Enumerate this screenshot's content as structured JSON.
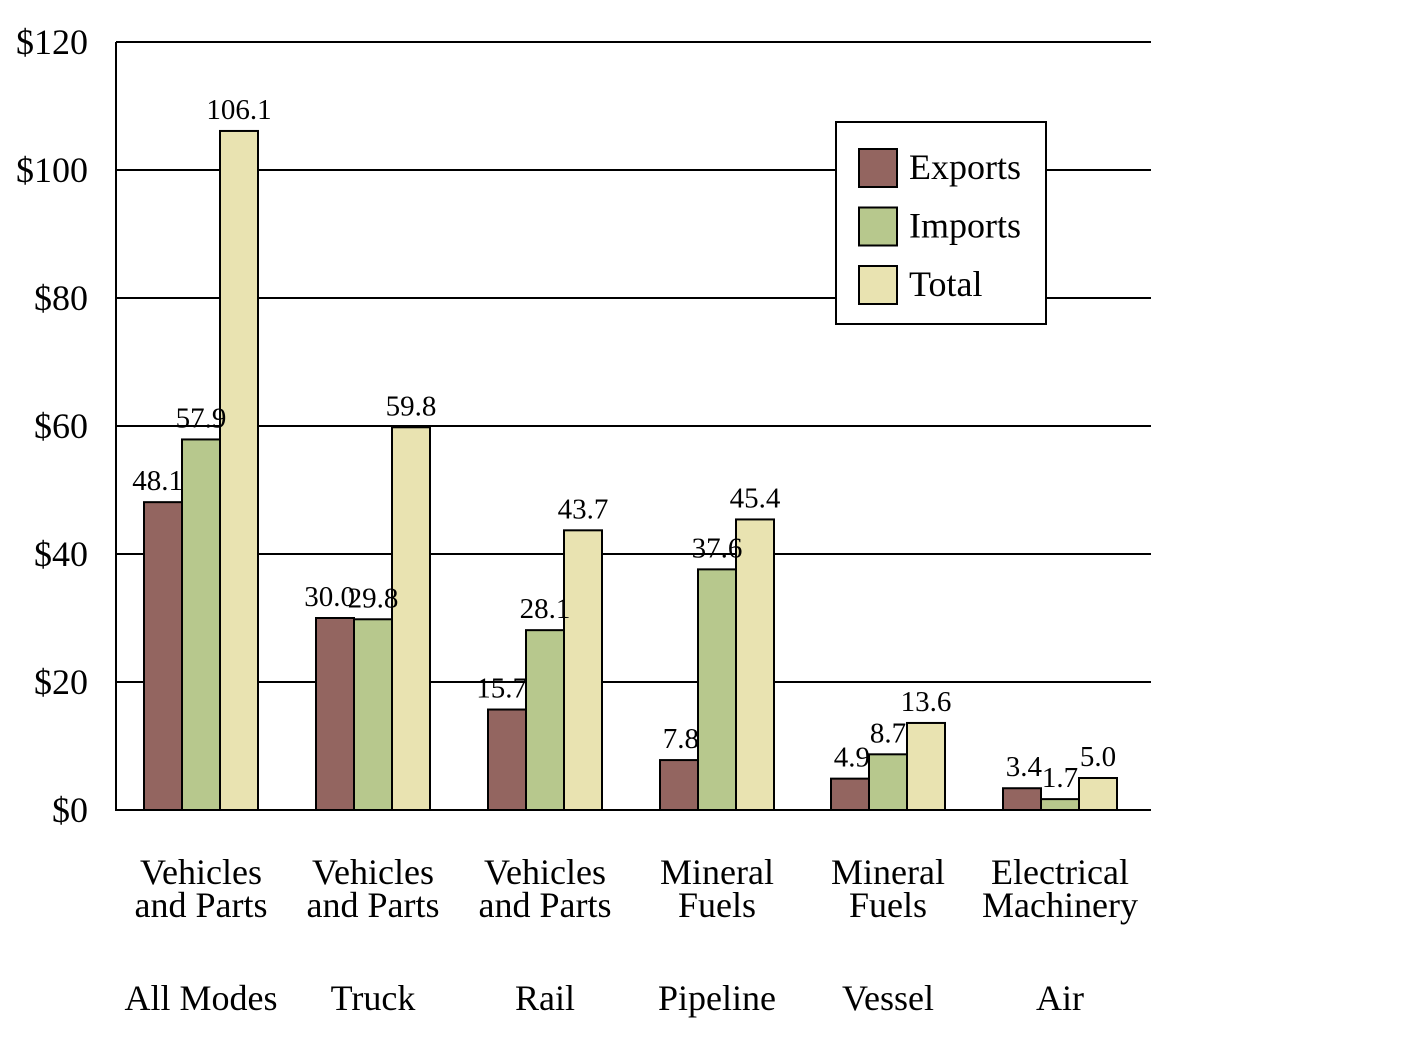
{
  "chart_data": {
    "type": "bar",
    "title": "",
    "xlabel": "",
    "ylabel": "",
    "ylim": [
      0,
      120
    ],
    "y_ticks": [
      0,
      20,
      40,
      60,
      80,
      100,
      120
    ],
    "y_tick_labels": [
      "$0",
      "$20",
      "$40",
      "$60",
      "$80",
      "$100",
      "$120"
    ],
    "grid": "horizontal",
    "legend_position": "top-right",
    "categories": [
      {
        "commodity": [
          "Vehicles",
          "and Parts"
        ],
        "mode": "All Modes"
      },
      {
        "commodity": [
          "Vehicles",
          "and Parts"
        ],
        "mode": "Truck"
      },
      {
        "commodity": [
          "Vehicles",
          "and Parts"
        ],
        "mode": "Rail"
      },
      {
        "commodity": [
          "Mineral",
          "Fuels"
        ],
        "mode": "Pipeline"
      },
      {
        "commodity": [
          "Mineral",
          "Fuels"
        ],
        "mode": "Vessel"
      },
      {
        "commodity": [
          "Electrical",
          "Machinery"
        ],
        "mode": "Air"
      }
    ],
    "series": [
      {
        "name": "Exports",
        "color": "#936560",
        "values": [
          48.1,
          30.0,
          15.7,
          7.8,
          4.9,
          3.4
        ],
        "labels": [
          "48.1",
          "30.0",
          "15.7",
          "7.8",
          "4.9",
          "3.4"
        ]
      },
      {
        "name": "Imports",
        "color": "#b7c88d",
        "values": [
          57.9,
          29.8,
          28.1,
          37.6,
          8.7,
          1.7
        ],
        "labels": [
          "57.9",
          "29.8",
          "28.1",
          "37.6",
          "8.7",
          "1.7"
        ]
      },
      {
        "name": "Total",
        "color": "#e9e3b1",
        "values": [
          106.1,
          59.8,
          43.7,
          45.4,
          13.6,
          5.0
        ],
        "labels": [
          "106.1",
          "59.8",
          "43.7",
          "45.4",
          "13.6",
          "5.0"
        ]
      }
    ]
  }
}
